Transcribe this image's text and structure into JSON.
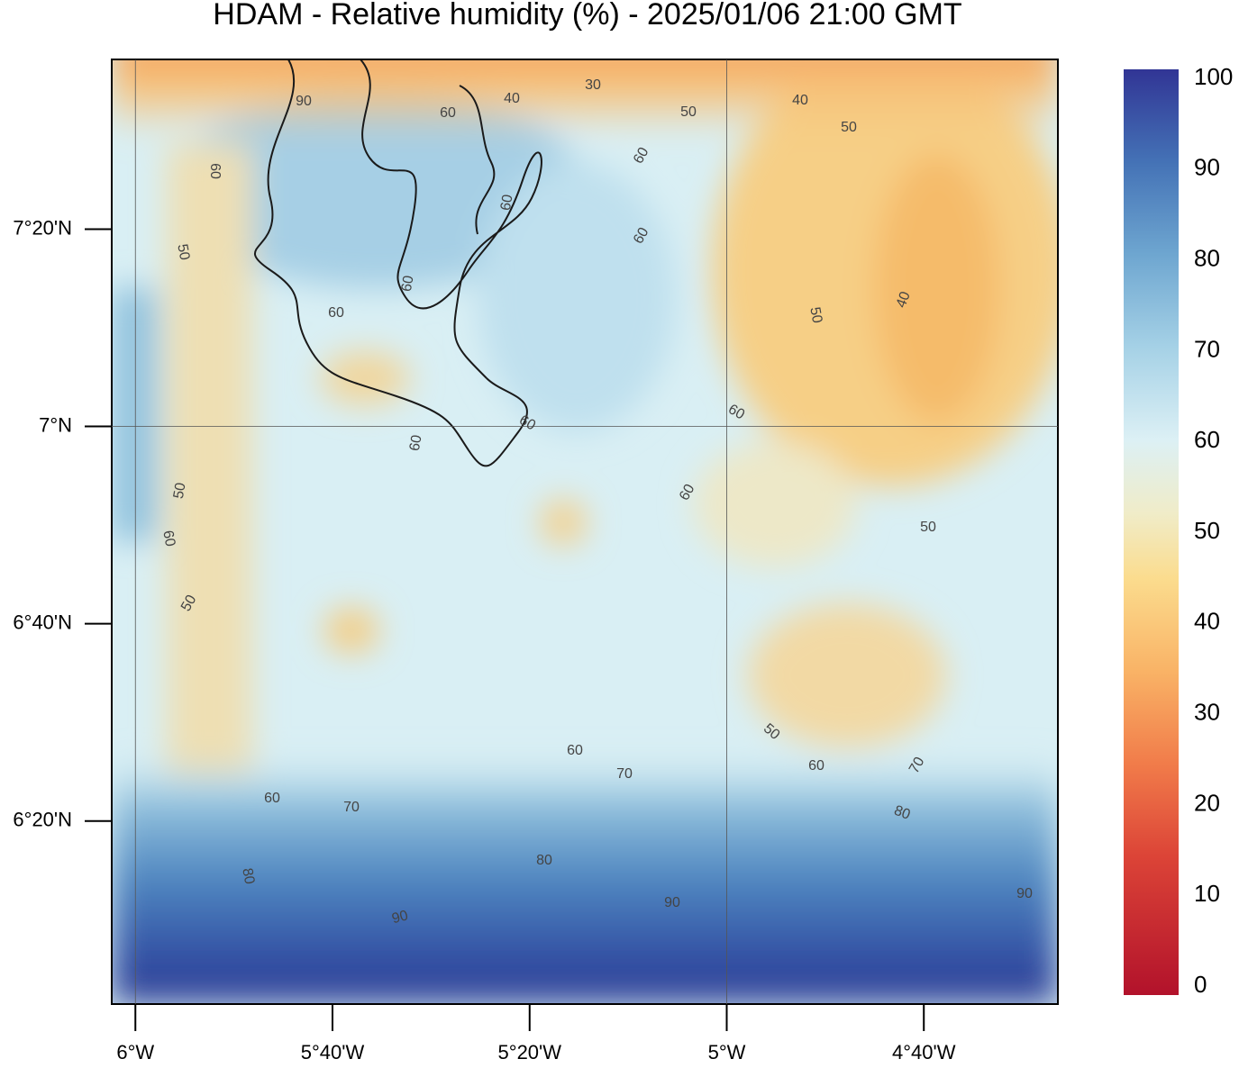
{
  "chart_data": {
    "type": "map",
    "title": "HDAM - Relative humidity (%)  -  2025/01/06  21:00 GMT",
    "xlim": [
      -6.04,
      -4.44
    ],
    "ylim": [
      6.024,
      7.62
    ],
    "xticks": [
      {
        "value": -6,
        "label": "6°W"
      },
      {
        "value": -5.6667,
        "label": "5°40'W"
      },
      {
        "value": -5.3333,
        "label": "5°20'W"
      },
      {
        "value": -5,
        "label": "5°W"
      },
      {
        "value": -4.6667,
        "label": "4°40'W"
      }
    ],
    "yticks": [
      {
        "value": 6.3333,
        "label": "6°20'N"
      },
      {
        "value": 6.6667,
        "label": "6°40'N"
      },
      {
        "value": 7,
        "label": "7°N"
      },
      {
        "value": 7.3333,
        "label": "7°20'N"
      }
    ],
    "grid": true,
    "colorbar": {
      "lim": [
        0,
        100
      ],
      "ticks": [
        0,
        10,
        20,
        30,
        40,
        50,
        60,
        70,
        80,
        90,
        100
      ]
    },
    "contour_labels": [
      30,
      40,
      40,
      50,
      50,
      90,
      60,
      60,
      60,
      60,
      60,
      50,
      60,
      40,
      50,
      60,
      60,
      60,
      60,
      50,
      60,
      60,
      50,
      50,
      50,
      60,
      60,
      70,
      70,
      60,
      70,
      80,
      80,
      80,
      90,
      90,
      90
    ]
  }
}
